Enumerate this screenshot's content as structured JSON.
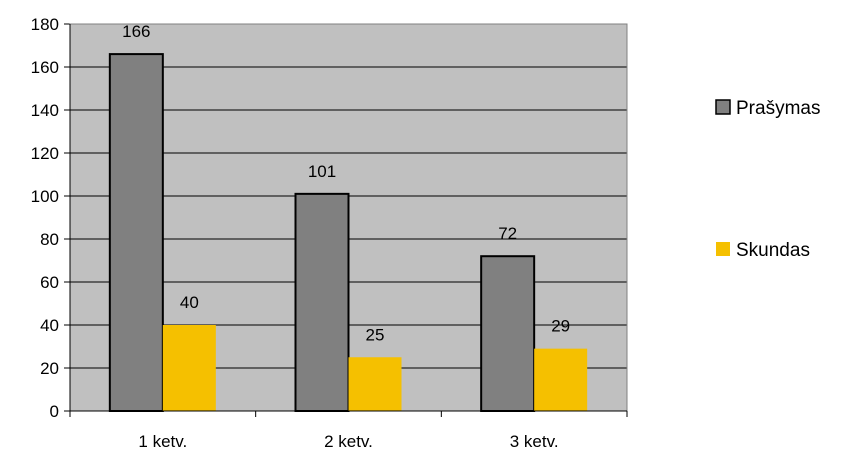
{
  "chart_data": {
    "type": "bar",
    "categories": [
      "1 ketv.",
      "2 ketv.",
      "3 ketv."
    ],
    "series": [
      {
        "name": "Prašymas",
        "values": [
          166,
          101,
          72
        ],
        "color": "#808080"
      },
      {
        "name": "Skundas",
        "values": [
          40,
          25,
          29
        ],
        "color": "#f5c000"
      }
    ],
    "ylim": [
      0,
      180
    ],
    "y_ticks": [
      "0",
      "20",
      "40",
      "60",
      "80",
      "100",
      "120",
      "140",
      "160",
      "180"
    ],
    "grid": true,
    "legend_position": "right",
    "plot_background": "#c0c0c0"
  }
}
